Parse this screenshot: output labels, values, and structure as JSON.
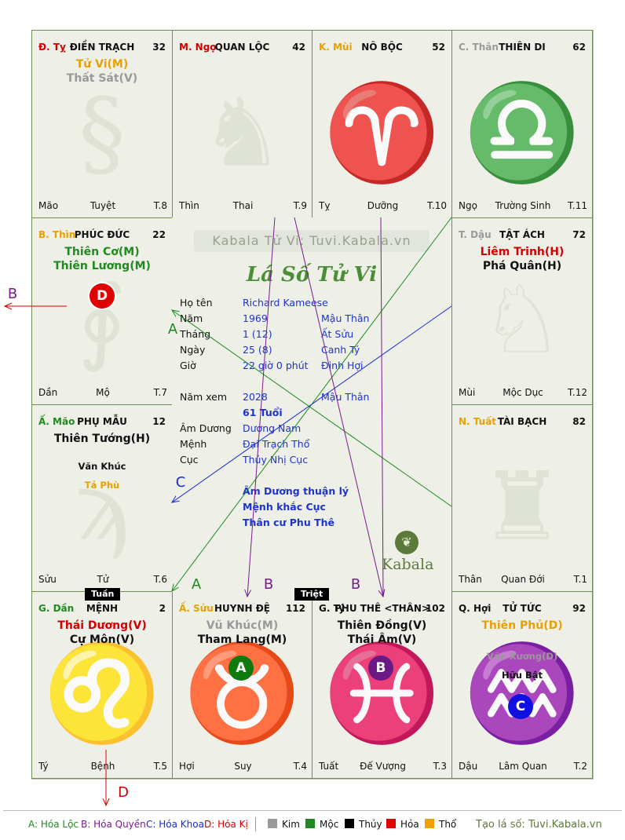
{
  "site": "Kabala Tử Vi: Tuvi.Kabala.vn",
  "brand_title": "Lá Số Tử Vi",
  "logo_text": "Kabala",
  "palaces": [
    {
      "id": "ty",
      "can": "Đ. Tỵ",
      "can_color": "#d40000",
      "name": "ĐIỀN TRẠCH",
      "num": "32",
      "stars": [
        {
          "t": "Tử Vi(M)",
          "c": "#e8a100",
          "k": "major"
        },
        {
          "t": "Thất Sát(V)",
          "c": "#999999",
          "k": "major"
        }
      ],
      "f_left": "Mão",
      "f_mid": "Tuyệt",
      "f_right": "T.8"
    },
    {
      "id": "ngo",
      "can": "M. Ngọ",
      "can_color": "#d40000",
      "name": "QUAN LỘC",
      "num": "42",
      "stars": [],
      "f_left": "Thìn",
      "f_mid": "Thai",
      "f_right": "T.9"
    },
    {
      "id": "mui",
      "can": "K. Mùi",
      "can_color": "#e8a100",
      "name": "NÔ BỘC",
      "num": "52",
      "stars": [],
      "f_left": "Tỵ",
      "f_mid": "Dưỡng",
      "f_right": "T.10"
    },
    {
      "id": "than",
      "can": "C. Thân",
      "can_color": "#999999",
      "name": "THIÊN DI",
      "num": "62",
      "stars": [],
      "f_left": "Ngọ",
      "f_mid": "Trường Sinh",
      "f_right": "T.11"
    },
    {
      "id": "thin",
      "can": "B. Thìn",
      "can_color": "#e8a100",
      "name": "PHÚC ĐỨC",
      "num": "22",
      "stars": [
        {
          "t": "Thiên Cơ(M)",
          "c": "#1f8a1f",
          "k": "major"
        },
        {
          "t": "Thiên Lương(M)",
          "c": "#1f8a1f",
          "k": "major"
        }
      ],
      "f_left": "Dần",
      "f_mid": "Mộ",
      "f_right": "T.7"
    },
    {
      "id": "dau",
      "can": "T. Dậu",
      "can_color": "#999999",
      "name": "TẬT ÁCH",
      "num": "72",
      "stars": [
        {
          "t": "Liêm Trinh(H)",
          "c": "#d40000",
          "k": "major"
        },
        {
          "t": "Phá Quân(H)",
          "c": "#111111",
          "k": "major"
        }
      ],
      "f_left": "Mùi",
      "f_mid": "Mộc Dục",
      "f_right": "T.12"
    },
    {
      "id": "mao",
      "can": "Ấ. Mão",
      "can_color": "#1f8a1f",
      "name": "PHỤ MẪU",
      "num": "12",
      "stars": [
        {
          "t": "Thiên Tướng(H)",
          "c": "#111111",
          "k": "major"
        }
      ],
      "minors": [
        {
          "t": "Văn Khúc",
          "c": "#111111"
        },
        {
          "t": "Tả Phù",
          "c": "#e8a100"
        }
      ],
      "f_left": "Sửu",
      "f_mid": "Tử",
      "f_right": "T.6"
    },
    {
      "id": "tuat",
      "can": "N. Tuất",
      "can_color": "#e8a100",
      "name": "TÀI BẠCH",
      "num": "82",
      "stars": [],
      "f_left": "Thân",
      "f_mid": "Quan Đới",
      "f_right": "T.1"
    },
    {
      "id": "dan",
      "can": "G. Dần",
      "can_color": "#1f8a1f",
      "name": "MỆNH",
      "num": "2",
      "stars": [
        {
          "t": "Thái Dương(V)",
          "c": "#d40000",
          "k": "major"
        },
        {
          "t": "Cự Môn(V)",
          "c": "#111111",
          "k": "major"
        }
      ],
      "f_left": "Tý",
      "f_mid": "Bệnh",
      "f_right": "T.5"
    },
    {
      "id": "suu",
      "can": "Ấ. Sửu",
      "can_color": "#e8a100",
      "name": "HUYNH ĐỆ",
      "num": "112",
      "stars": [
        {
          "t": "Vũ Khúc(M)",
          "c": "#999999",
          "k": "major"
        },
        {
          "t": "Tham Lang(M)",
          "c": "#111111",
          "k": "major"
        }
      ],
      "f_left": "Hợi",
      "f_mid": "Suy",
      "f_right": "T.4"
    },
    {
      "id": "ty2",
      "can": "G. Tý",
      "can_color": "#111111",
      "name": "PHU THÊ <THÂN>",
      "num": "102",
      "stars": [
        {
          "t": "Thiên Đồng(V)",
          "c": "#111111",
          "k": "major"
        },
        {
          "t": "Thái Âm(V)",
          "c": "#111111",
          "k": "major"
        }
      ],
      "f_left": "Tuất",
      "f_mid": "Đế Vượng",
      "f_right": "T.3"
    },
    {
      "id": "hoi",
      "can": "Q. Hợi",
      "can_color": "#111111",
      "name": "TỬ TỨC",
      "num": "92",
      "stars": [
        {
          "t": "Thiên Phủ(D)",
          "c": "#e8a100",
          "k": "major"
        }
      ],
      "minors": [
        {
          "t": "Văn Xương(D)",
          "c": "#999999"
        },
        {
          "t": "Hữu Bật",
          "c": "#111111"
        }
      ],
      "f_left": "Dậu",
      "f_mid": "Lâm Quan",
      "f_right": "T.2"
    }
  ],
  "info": {
    "ho_ten_k": "Họ tên",
    "ho_ten_v": "Richard Kameese",
    "nam_k": "Năm",
    "nam_v": "1969",
    "nam_v2": "Mậu Thân",
    "thang_k": "Tháng",
    "thang_v": "1  (12)",
    "thang_v2": "Ất Sửu",
    "ngay_k": "Ngày",
    "ngay_v": "25  (8)",
    "ngay_v2": "Canh Tý",
    "gio_k": "Giờ",
    "gio_v": "22 giờ 0 phút",
    "gio_v2": "Đinh Hợi",
    "namxem_k": "Năm xem",
    "namxem_v": "2028",
    "namxem_v2": "Mậu Thân",
    "tuoi": "61 Tuổi",
    "amduong_k": "Âm Dương",
    "amduong_v": "Dương Nam",
    "menh_k": "Mệnh",
    "menh_v": "Đại Trạch Thổ",
    "cuc_k": "Cục",
    "cuc_v": "Thủy Nhị Cục",
    "note1": "Âm Dương thuận lý",
    "note2": "Mệnh khắc Cục",
    "note3": "Thân cư Phu Thê"
  },
  "tags": {
    "tuan": "Tuần",
    "triet": "Triệt"
  },
  "badges": {
    "a": "A",
    "b": "B",
    "c": "C",
    "d": "D"
  },
  "arrow_labels": {
    "a": "A",
    "b": "B",
    "c": "C",
    "d": "D"
  },
  "colors": {
    "a": "#1f8a1f",
    "b": "#7a1a8e",
    "c": "#1a2ad0",
    "d": "#d40000"
  },
  "legend": {
    "a": "A: Hóa Lộc",
    "b": "B: Hóa Quyền",
    "c": "C: Hóa Khoa",
    "d": "D: Hóa Kị",
    "kim": "Kim",
    "moc": "Mộc",
    "thuy": "Thủy",
    "hoa": "Hỏa",
    "tho": "Thổ",
    "footer": "Tạo lá số: Tuvi.Kabala.vn"
  }
}
